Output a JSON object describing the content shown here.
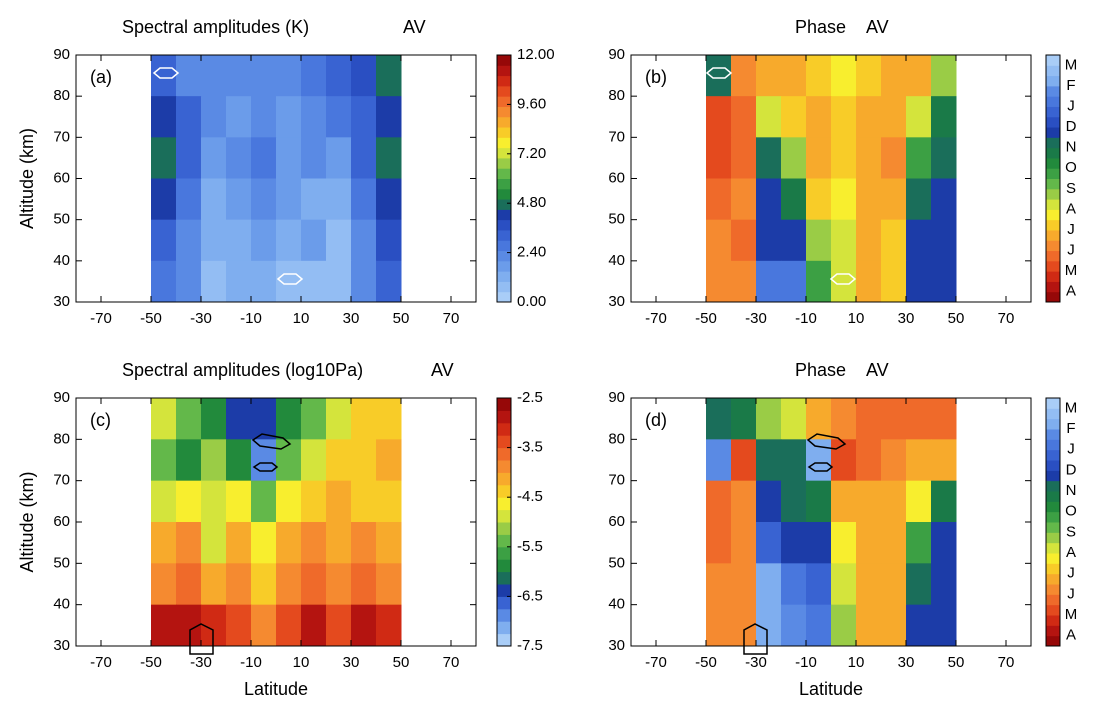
{
  "chart_data": [
    {
      "type": "heatmap",
      "title": "Spectral amplitudes (K)",
      "subtitle": "AV",
      "label": "(a)",
      "y_label": "Altitude (km)",
      "xlim": [
        -80,
        80
      ],
      "xticks": [
        -70,
        -50,
        -30,
        -10,
        10,
        30,
        50,
        70
      ],
      "ylim": [
        30,
        90
      ],
      "yticks": [
        30,
        40,
        50,
        60,
        70,
        80,
        90
      ],
      "x": [
        -45,
        -35,
        -25,
        -15,
        -5,
        5,
        15,
        25,
        35,
        45
      ],
      "y": [
        85,
        75,
        65,
        55,
        45,
        35
      ],
      "z": [
        [
          3.0,
          2.2,
          2.0,
          2.4,
          2.2,
          2.4,
          2.6,
          3.0,
          3.6,
          4.8
        ],
        [
          4.2,
          3.0,
          2.0,
          1.8,
          2.0,
          1.8,
          2.2,
          2.6,
          3.2,
          4.4
        ],
        [
          4.6,
          3.2,
          1.6,
          2.4,
          2.6,
          1.8,
          2.0,
          1.6,
          3.0,
          4.6
        ],
        [
          4.0,
          2.8,
          1.4,
          1.8,
          2.2,
          1.6,
          1.4,
          1.0,
          2.6,
          4.2
        ],
        [
          3.2,
          2.4,
          1.0,
          1.2,
          1.6,
          1.2,
          1.6,
          0.8,
          2.4,
          3.6
        ],
        [
          2.8,
          2.2,
          0.8,
          1.0,
          1.2,
          0.6,
          0.8,
          0.6,
          2.2,
          3.0
        ]
      ],
      "zlim": [
        0,
        12
      ],
      "zticks": [
        {
          "value": 0,
          "label": "0.00"
        },
        {
          "value": 2.4,
          "label": "2.40"
        },
        {
          "value": 4.8,
          "label": "4.80"
        },
        {
          "value": 7.2,
          "label": "7.20"
        },
        {
          "value": 9.6,
          "label": "9.60"
        },
        {
          "value": 12,
          "label": "12.00"
        }
      ],
      "colors": [
        "#a9cdf7",
        "#93bdf3",
        "#7faeef",
        "#6b9cea",
        "#5a8ae4",
        "#4977dd",
        "#3963d2",
        "#2a4fc2",
        "#1c3ca8",
        "#1a6e5a",
        "#228a3c",
        "#3ca044",
        "#63b84a",
        "#9acc46",
        "#d4e43c",
        "#f8ee2e",
        "#f8cc28",
        "#f7aa2c",
        "#f58a30",
        "#ef6a2a",
        "#e44a1e",
        "#d02a14",
        "#b41410",
        "#960808"
      ]
    },
    {
      "type": "heatmap",
      "title": "Phase",
      "subtitle": "AV",
      "label": "(b)",
      "xlim": [
        -80,
        80
      ],
      "xticks": [
        -70,
        -50,
        -30,
        -10,
        10,
        30,
        50,
        70
      ],
      "ylim": [
        30,
        90
      ],
      "yticks": [
        30,
        40,
        50,
        60,
        70,
        80,
        90
      ],
      "x": [
        -45,
        -35,
        -25,
        -15,
        -5,
        5,
        15,
        25,
        35,
        45
      ],
      "y": [
        85,
        75,
        65,
        55,
        45,
        35
      ],
      "z": [
        [
          7.5,
          2.5,
          3.0,
          3.0,
          3.5,
          4.0,
          3.5,
          3.0,
          3.0,
          5.0
        ],
        [
          1.5,
          2.0,
          4.5,
          3.5,
          3.0,
          3.5,
          3.0,
          3.0,
          4.5,
          7.0
        ],
        [
          1.5,
          2.0,
          7.5,
          5.0,
          3.0,
          3.5,
          3.0,
          2.5,
          6.0,
          7.5
        ],
        [
          2.0,
          2.5,
          8.0,
          7.0,
          3.5,
          4.0,
          3.0,
          3.0,
          7.5,
          8.0
        ],
        [
          2.5,
          2.0,
          8.0,
          8.0,
          5.0,
          4.5,
          3.0,
          3.5,
          8.0,
          8.0
        ],
        [
          2.5,
          2.5,
          9.5,
          9.5,
          6.0,
          4.5,
          3.0,
          3.5,
          8.0,
          8.0
        ]
      ],
      "zlim": [
        0,
        12
      ],
      "zticks": [
        {
          "value": 0.5,
          "label": "A"
        },
        {
          "value": 1.5,
          "label": "M"
        },
        {
          "value": 2.5,
          "label": "J"
        },
        {
          "value": 3.5,
          "label": "J"
        },
        {
          "value": 4.5,
          "label": "A"
        },
        {
          "value": 5.5,
          "label": "S"
        },
        {
          "value": 6.5,
          "label": "O"
        },
        {
          "value": 7.5,
          "label": "N"
        },
        {
          "value": 8.5,
          "label": "D"
        },
        {
          "value": 9.5,
          "label": "J"
        },
        {
          "value": 10.5,
          "label": "F"
        },
        {
          "value": 11.5,
          "label": "M"
        }
      ],
      "colors": [
        "#960808",
        "#b41410",
        "#d02a14",
        "#e44a1e",
        "#ef6a2a",
        "#f58a30",
        "#f7aa2c",
        "#f8cc28",
        "#f8ee2e",
        "#d4e43c",
        "#9acc46",
        "#63b84a",
        "#3ca044",
        "#228a3c",
        "#1a7a48",
        "#1a6e5a",
        "#1c3ca8",
        "#2a4fc2",
        "#3963d2",
        "#4977dd",
        "#5a8ae4",
        "#7faeef",
        "#93bdf3",
        "#a9cdf7"
      ]
    },
    {
      "type": "heatmap",
      "title": "Spectral amplitudes (log10Pa)",
      "subtitle": "AV",
      "label": "(c)",
      "y_label": "Altitude (km)",
      "x_label": "Latitude",
      "xlim": [
        -80,
        80
      ],
      "xticks": [
        -70,
        -50,
        -30,
        -10,
        10,
        30,
        50,
        70
      ],
      "ylim": [
        30,
        90
      ],
      "yticks": [
        30,
        40,
        50,
        60,
        70,
        80,
        90
      ],
      "x": [
        -45,
        -35,
        -25,
        -15,
        -5,
        5,
        15,
        25,
        35,
        45
      ],
      "y": [
        85,
        75,
        65,
        55,
        45,
        35
      ],
      "z": [
        [
          -5.0,
          -5.5,
          -6.0,
          -6.5,
          -6.5,
          -6.0,
          -5.5,
          -5.0,
          -4.5,
          -4.5
        ],
        [
          -5.5,
          -5.8,
          -5.2,
          -6.0,
          -6.8,
          -5.5,
          -5.0,
          -4.5,
          -4.3,
          -4.2
        ],
        [
          -4.8,
          -4.6,
          -5.0,
          -4.6,
          -5.5,
          -4.6,
          -4.4,
          -4.2,
          -4.4,
          -4.5
        ],
        [
          -4.2,
          -4.0,
          -4.8,
          -4.2,
          -4.6,
          -4.2,
          -4.0,
          -4.2,
          -4.0,
          -4.2
        ],
        [
          -3.8,
          -3.6,
          -4.2,
          -3.8,
          -4.4,
          -3.8,
          -3.6,
          -4.0,
          -3.6,
          -3.8
        ],
        [
          -3.0,
          -2.9,
          -3.2,
          -3.4,
          -4.0,
          -3.4,
          -3.0,
          -3.4,
          -3.0,
          -3.2
        ]
      ],
      "zlim": [
        -7.5,
        -2.5
      ],
      "zticks": [
        -7.5,
        -6.5,
        -5.5,
        -4.5,
        -3.5,
        -2.5
      ],
      "colors": [
        "#a9cdf7",
        "#7faeef",
        "#5a8ae4",
        "#3963d2",
        "#1c3ca8",
        "#1a6e5a",
        "#228a3c",
        "#3ca044",
        "#63b84a",
        "#9acc46",
        "#d4e43c",
        "#f8ee2e",
        "#f8cc28",
        "#f7aa2c",
        "#f58a30",
        "#ef6a2a",
        "#e44a1e",
        "#d02a14",
        "#b41410",
        "#960808"
      ]
    },
    {
      "type": "heatmap",
      "title": "Phase",
      "subtitle": "AV",
      "label": "(d)",
      "x_label": "Latitude",
      "xlim": [
        -80,
        80
      ],
      "xticks": [
        -70,
        -50,
        -30,
        -10,
        10,
        30,
        50,
        70
      ],
      "ylim": [
        30,
        90
      ],
      "yticks": [
        30,
        40,
        50,
        60,
        70,
        80,
        90
      ],
      "x": [
        -45,
        -35,
        -25,
        -15,
        -5,
        5,
        15,
        25,
        35,
        45
      ],
      "y": [
        85,
        75,
        65,
        55,
        45,
        35
      ],
      "z": [
        [
          7.5,
          7.0,
          5.0,
          4.5,
          3.0,
          2.5,
          2.0,
          2.0,
          2.0,
          2.0
        ],
        [
          10.0,
          1.5,
          7.5,
          7.5,
          10.5,
          1.5,
          2.0,
          2.5,
          3.0,
          3.0
        ],
        [
          2.0,
          2.5,
          8.0,
          7.5,
          7.0,
          3.0,
          3.0,
          3.0,
          4.0,
          7.0
        ],
        [
          2.0,
          2.5,
          9.0,
          8.0,
          8.0,
          4.0,
          3.0,
          3.0,
          6.0,
          8.0
        ],
        [
          2.5,
          2.5,
          10.5,
          9.5,
          9.0,
          4.5,
          3.0,
          3.0,
          7.5,
          8.0
        ],
        [
          2.5,
          2.5,
          10.5,
          10.0,
          9.5,
          5.0,
          3.0,
          3.0,
          8.0,
          8.0
        ]
      ],
      "zlim": [
        0,
        12
      ],
      "zticks": [
        {
          "value": 0.5,
          "label": "A"
        },
        {
          "value": 1.5,
          "label": "M"
        },
        {
          "value": 2.5,
          "label": "J"
        },
        {
          "value": 3.5,
          "label": "J"
        },
        {
          "value": 4.5,
          "label": "A"
        },
        {
          "value": 5.5,
          "label": "S"
        },
        {
          "value": 6.5,
          "label": "O"
        },
        {
          "value": 7.5,
          "label": "N"
        },
        {
          "value": 8.5,
          "label": "D"
        },
        {
          "value": 9.5,
          "label": "J"
        },
        {
          "value": 10.5,
          "label": "F"
        },
        {
          "value": 11.5,
          "label": "M"
        }
      ],
      "colors": [
        "#960808",
        "#b41410",
        "#d02a14",
        "#e44a1e",
        "#ef6a2a",
        "#f58a30",
        "#f7aa2c",
        "#f8cc28",
        "#f8ee2e",
        "#d4e43c",
        "#9acc46",
        "#63b84a",
        "#3ca044",
        "#228a3c",
        "#1a7a48",
        "#1a6e5a",
        "#1c3ca8",
        "#2a4fc2",
        "#3963d2",
        "#4977dd",
        "#5a8ae4",
        "#7faeef",
        "#93bdf3",
        "#a9cdf7"
      ]
    }
  ]
}
